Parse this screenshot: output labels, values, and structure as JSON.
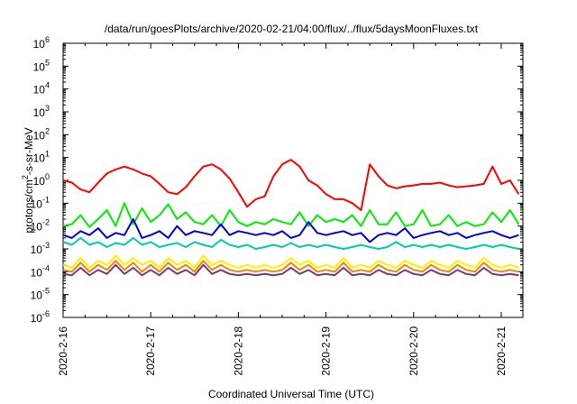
{
  "chart_data": {
    "type": "line",
    "title": "/data/run/goesPlots/archive/2020-02-21/04:00/flux/../flux/5daysMoonFluxes.txt",
    "xlabel": "Coordinated Universal Time (UTC)",
    "ylabel_parts": [
      "protons/cm",
      "2",
      "-s-sr-MeV"
    ],
    "y_scale": "log",
    "ylim": [
      1e-06,
      1000000.0
    ],
    "y_ticks": [
      {
        "base": "10",
        "exp": "-6"
      },
      {
        "base": "10",
        "exp": "-5"
      },
      {
        "base": "10",
        "exp": "-4"
      },
      {
        "base": "10",
        "exp": "-3"
      },
      {
        "base": "10",
        "exp": "-2"
      },
      {
        "base": "10",
        "exp": "-1"
      },
      {
        "base": "10",
        "exp": "0"
      },
      {
        "base": "10",
        "exp": "1"
      },
      {
        "base": "10",
        "exp": "2"
      },
      {
        "base": "10",
        "exp": "3"
      },
      {
        "base": "10",
        "exp": "4"
      },
      {
        "base": "10",
        "exp": "5"
      },
      {
        "base": "10",
        "exp": "6"
      }
    ],
    "x_ticks": [
      "2020-2-16",
      "2020-2-17",
      "2020-2-18",
      "2020-2-19",
      "2020-2-20",
      "2020-2-21"
    ],
    "x_range_days": [
      0,
      5.2
    ],
    "grid": false,
    "series": [
      {
        "color": "#ff0000",
        "x": [
          0.0,
          0.1,
          0.2,
          0.3,
          0.4,
          0.5,
          0.6,
          0.7,
          0.8,
          0.9,
          1.0,
          1.1,
          1.2,
          1.3,
          1.4,
          1.5,
          1.6,
          1.7,
          1.8,
          1.9,
          2.0,
          2.1,
          2.2,
          2.3,
          2.4,
          2.5,
          2.6,
          2.7,
          2.8,
          2.9,
          3.0,
          3.1,
          3.2,
          3.3,
          3.4,
          3.5,
          3.6,
          3.7,
          3.8,
          3.9,
          4.0,
          4.1,
          4.2,
          4.3,
          4.4,
          4.5,
          4.6,
          4.7,
          4.8,
          4.9,
          5.0,
          5.1,
          5.2
        ],
        "y": [
          1.0,
          0.8,
          0.4,
          0.3,
          0.8,
          2.0,
          3.0,
          4.0,
          3.0,
          2.0,
          1.5,
          0.7,
          0.3,
          0.25,
          0.5,
          1.5,
          4.0,
          5.0,
          3.0,
          1.2,
          0.3,
          0.07,
          0.15,
          0.2,
          1.5,
          5.0,
          8.0,
          4.0,
          1.0,
          0.6,
          0.25,
          0.15,
          0.15,
          0.1,
          0.05,
          5.0,
          1.5,
          0.6,
          0.45,
          0.55,
          0.6,
          0.7,
          0.7,
          0.8,
          0.6,
          0.5,
          0.55,
          0.6,
          0.7,
          4.0,
          0.7,
          1.0,
          0.25
        ]
      },
      {
        "color": "#00ee00",
        "x": [
          0.0,
          0.1,
          0.2,
          0.3,
          0.4,
          0.5,
          0.6,
          0.7,
          0.8,
          0.9,
          1.0,
          1.1,
          1.2,
          1.3,
          1.4,
          1.5,
          1.6,
          1.7,
          1.8,
          1.9,
          2.0,
          2.1,
          2.2,
          2.3,
          2.4,
          2.5,
          2.6,
          2.7,
          2.8,
          2.9,
          3.0,
          3.1,
          3.2,
          3.3,
          3.4,
          3.5,
          3.6,
          3.7,
          3.8,
          3.9,
          4.0,
          4.1,
          4.2,
          4.3,
          4.4,
          4.5,
          4.6,
          4.7,
          4.8,
          4.9,
          5.0,
          5.1,
          5.2
        ],
        "y": [
          0.01,
          0.012,
          0.03,
          0.009,
          0.02,
          0.05,
          0.01,
          0.1,
          0.012,
          0.06,
          0.015,
          0.03,
          0.09,
          0.02,
          0.04,
          0.015,
          0.012,
          0.03,
          0.01,
          0.05,
          0.015,
          0.01,
          0.015,
          0.012,
          0.02,
          0.015,
          0.012,
          0.04,
          0.01,
          0.03,
          0.015,
          0.02,
          0.015,
          0.03,
          0.01,
          0.05,
          0.012,
          0.012,
          0.04,
          0.01,
          0.012,
          0.05,
          0.01,
          0.012,
          0.03,
          0.01,
          0.015,
          0.01,
          0.012,
          0.04,
          0.015,
          0.05,
          0.012
        ]
      },
      {
        "color": "#0000dd",
        "x": [
          0.0,
          0.1,
          0.2,
          0.3,
          0.4,
          0.5,
          0.6,
          0.7,
          0.8,
          0.9,
          1.0,
          1.1,
          1.2,
          1.3,
          1.4,
          1.5,
          1.6,
          1.7,
          1.8,
          1.9,
          2.0,
          2.1,
          2.2,
          2.3,
          2.4,
          2.5,
          2.6,
          2.7,
          2.8,
          2.9,
          3.0,
          3.1,
          3.2,
          3.3,
          3.4,
          3.5,
          3.6,
          3.7,
          3.8,
          3.9,
          4.0,
          4.1,
          4.2,
          4.3,
          4.4,
          4.5,
          4.6,
          4.7,
          4.8,
          4.9,
          5.0,
          5.1,
          5.2
        ],
        "y": [
          0.004,
          0.003,
          0.006,
          0.004,
          0.008,
          0.003,
          0.005,
          0.004,
          0.02,
          0.003,
          0.004,
          0.006,
          0.003,
          0.01,
          0.004,
          0.006,
          0.005,
          0.004,
          0.012,
          0.004,
          0.006,
          0.005,
          0.004,
          0.005,
          0.004,
          0.006,
          0.003,
          0.004,
          0.015,
          0.005,
          0.004,
          0.005,
          0.006,
          0.004,
          0.005,
          0.002,
          0.004,
          0.005,
          0.004,
          0.008,
          0.003,
          0.004,
          0.005,
          0.006,
          0.004,
          0.005,
          0.003,
          0.004,
          0.005,
          0.006,
          0.004,
          0.003,
          0.004
        ]
      },
      {
        "color": "#00ccaa",
        "x": [
          0.0,
          0.1,
          0.2,
          0.3,
          0.4,
          0.5,
          0.6,
          0.7,
          0.8,
          0.9,
          1.0,
          1.1,
          1.2,
          1.3,
          1.4,
          1.5,
          1.6,
          1.7,
          1.8,
          1.9,
          2.0,
          2.1,
          2.2,
          2.3,
          2.4,
          2.5,
          2.6,
          2.7,
          2.8,
          2.9,
          3.0,
          3.1,
          3.2,
          3.3,
          3.4,
          3.5,
          3.6,
          3.7,
          3.8,
          3.9,
          4.0,
          4.1,
          4.2,
          4.3,
          4.4,
          4.5,
          4.6,
          4.7,
          4.8,
          4.9,
          5.0,
          5.1,
          5.2
        ],
        "y": [
          0.002,
          0.0015,
          0.003,
          0.0015,
          0.002,
          0.0012,
          0.0018,
          0.0015,
          0.003,
          0.0015,
          0.002,
          0.0012,
          0.0015,
          0.0018,
          0.0012,
          0.002,
          0.0015,
          0.0012,
          0.0025,
          0.0015,
          0.0012,
          0.0015,
          0.001,
          0.0012,
          0.0015,
          0.0012,
          0.0018,
          0.0012,
          0.0015,
          0.0012,
          0.0015,
          0.0012,
          0.001,
          0.0012,
          0.0015,
          0.0012,
          0.001,
          0.0012,
          0.002,
          0.0012,
          0.0015,
          0.0012,
          0.0015,
          0.0012,
          0.0015,
          0.0012,
          0.001,
          0.0012,
          0.0015,
          0.0012,
          0.0015,
          0.0012,
          0.001
        ]
      },
      {
        "color": "#ffee00",
        "x": [
          0.0,
          0.1,
          0.2,
          0.3,
          0.4,
          0.5,
          0.6,
          0.7,
          0.8,
          0.9,
          1.0,
          1.1,
          1.2,
          1.3,
          1.4,
          1.5,
          1.6,
          1.7,
          1.8,
          1.9,
          2.0,
          2.1,
          2.2,
          2.3,
          2.4,
          2.5,
          2.6,
          2.7,
          2.8,
          2.9,
          3.0,
          3.1,
          3.2,
          3.3,
          3.4,
          3.5,
          3.6,
          3.7,
          3.8,
          3.9,
          4.0,
          4.1,
          4.2,
          4.3,
          4.4,
          4.5,
          4.6,
          4.7,
          4.8,
          4.9,
          5.0,
          5.1,
          5.2
        ],
        "y": [
          0.0002,
          0.00015,
          0.0004,
          0.00015,
          0.0003,
          0.0002,
          0.0005,
          0.0002,
          0.0004,
          0.0002,
          0.0003,
          0.00015,
          0.0004,
          0.0002,
          0.0003,
          0.00015,
          0.0005,
          0.0002,
          0.0003,
          0.0002,
          0.00015,
          0.0002,
          0.00015,
          0.0002,
          0.00015,
          0.0002,
          0.0004,
          0.0002,
          0.0003,
          0.00015,
          0.0002,
          0.00015,
          0.0004,
          0.00015,
          0.0002,
          0.00015,
          0.0003,
          0.0002,
          0.00015,
          0.0003,
          0.0002,
          0.00015,
          0.0003,
          0.0002,
          0.00015,
          0.0003,
          0.0002,
          0.00015,
          0.0004,
          0.0002,
          0.00015,
          0.0002,
          0.00015
        ]
      },
      {
        "color": "#ee8800",
        "x": [
          0.0,
          0.1,
          0.2,
          0.3,
          0.4,
          0.5,
          0.6,
          0.7,
          0.8,
          0.9,
          1.0,
          1.1,
          1.2,
          1.3,
          1.4,
          1.5,
          1.6,
          1.7,
          1.8,
          1.9,
          2.0,
          2.1,
          2.2,
          2.3,
          2.4,
          2.5,
          2.6,
          2.7,
          2.8,
          2.9,
          3.0,
          3.1,
          3.2,
          3.3,
          3.4,
          3.5,
          3.6,
          3.7,
          3.8,
          3.9,
          4.0,
          4.1,
          4.2,
          4.3,
          4.4,
          4.5,
          4.6,
          4.7,
          4.8,
          4.9,
          5.0,
          5.1,
          5.2
        ],
        "y": [
          0.00012,
          0.0001,
          0.00025,
          0.0001,
          0.0002,
          0.00012,
          0.0003,
          0.00012,
          0.00025,
          0.0001,
          0.0002,
          0.0001,
          0.00025,
          0.00012,
          0.0002,
          0.0001,
          0.0003,
          0.00012,
          0.0002,
          0.00012,
          0.0001,
          0.00012,
          0.0001,
          0.00012,
          0.0001,
          0.00012,
          0.00025,
          0.00012,
          0.0002,
          0.0001,
          0.00012,
          0.0001,
          0.00025,
          0.0001,
          0.00012,
          0.0001,
          0.0002,
          0.00012,
          0.0001,
          0.0002,
          0.00012,
          0.0001,
          0.0002,
          0.00012,
          0.0001,
          0.0002,
          0.00012,
          0.0001,
          0.00025,
          0.00012,
          0.0001,
          0.00012,
          0.0001
        ]
      },
      {
        "color": "#7a3a7a",
        "x": [
          0.0,
          0.1,
          0.2,
          0.3,
          0.4,
          0.5,
          0.6,
          0.7,
          0.8,
          0.9,
          1.0,
          1.1,
          1.2,
          1.3,
          1.4,
          1.5,
          1.6,
          1.7,
          1.8,
          1.9,
          2.0,
          2.1,
          2.2,
          2.3,
          2.4,
          2.5,
          2.6,
          2.7,
          2.8,
          2.9,
          3.0,
          3.1,
          3.2,
          3.3,
          3.4,
          3.5,
          3.6,
          3.7,
          3.8,
          3.9,
          4.0,
          4.1,
          4.2,
          4.3,
          4.4,
          4.5,
          4.6,
          4.7,
          4.8,
          4.9,
          5.0,
          5.1,
          5.2
        ],
        "y": [
          8e-05,
          7e-05,
          0.00015,
          7e-05,
          0.00012,
          8e-05,
          0.0002,
          8e-05,
          0.00015,
          7e-05,
          0.00012,
          7e-05,
          0.00015,
          8e-05,
          0.00012,
          7e-05,
          0.0002,
          8e-05,
          0.00012,
          8e-05,
          7e-05,
          8e-05,
          7e-05,
          8e-05,
          7e-05,
          8e-05,
          0.00015,
          8e-05,
          0.00012,
          7e-05,
          8e-05,
          7e-05,
          0.00015,
          7e-05,
          8e-05,
          7e-05,
          0.00012,
          8e-05,
          7e-05,
          0.00012,
          8e-05,
          7e-05,
          0.00012,
          8e-05,
          7e-05,
          0.00012,
          8e-05,
          7e-05,
          0.00015,
          8e-05,
          7e-05,
          8e-05,
          7e-05
        ]
      }
    ]
  }
}
